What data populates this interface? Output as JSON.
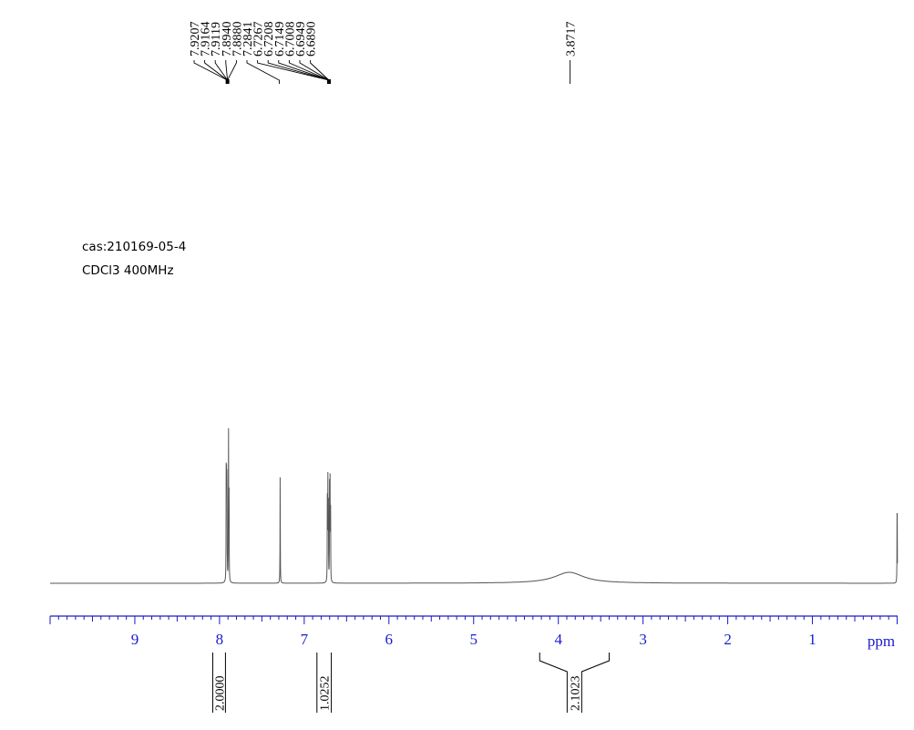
{
  "header": {
    "sample_id": "cas:210169-05-4",
    "solvent_frequency": "CDCl3 400MHz"
  },
  "colors": {
    "spectrum": "#555555",
    "axis": "#1a1acc",
    "peak_labels": "#000000"
  },
  "chart_data": {
    "type": "line",
    "title": "",
    "xlabel": "ppm",
    "ylabel": "",
    "x_axis_reversed": true,
    "xlim": [
      10.0,
      0.0
    ],
    "grid": false,
    "x_ticks": [
      9,
      8,
      7,
      6,
      5,
      4,
      3,
      2,
      1
    ],
    "peak_label_groups": [
      {
        "shifts": [
          "7.9207",
          "7.9164",
          "7.9119",
          "7.8940",
          "7.8880"
        ]
      },
      {
        "shifts": [
          "7.2841"
        ]
      },
      {
        "shifts": [
          "6.7267",
          "6.7208",
          "6.7149",
          "6.7008",
          "6.6949",
          "6.6890"
        ]
      },
      {
        "shifts": [
          "3.8717"
        ]
      }
    ],
    "peaks": [
      {
        "ppm": 7.9207,
        "height": 0.78
      },
      {
        "ppm": 7.9164,
        "height": 0.62
      },
      {
        "ppm": 7.9119,
        "height": 0.72
      },
      {
        "ppm": 7.894,
        "height": 0.94
      },
      {
        "ppm": 7.888,
        "height": 0.7
      },
      {
        "ppm": 7.2841,
        "height": 0.68
      },
      {
        "ppm": 6.7267,
        "height": 0.55
      },
      {
        "ppm": 6.7208,
        "height": 0.58
      },
      {
        "ppm": 6.7149,
        "height": 0.5
      },
      {
        "ppm": 6.7008,
        "height": 0.66
      },
      {
        "ppm": 6.6949,
        "height": 0.57
      },
      {
        "ppm": 6.689,
        "height": 0.45
      },
      {
        "ppm": 0.0,
        "height": 0.6
      }
    ],
    "broad_peaks": [
      {
        "ppm": 3.8717,
        "height": 0.065,
        "width_ppm": 0.42
      }
    ],
    "integrals": [
      {
        "from_ppm": 8.08,
        "to_ppm": 7.93,
        "value": "2.0000"
      },
      {
        "from_ppm": 6.85,
        "to_ppm": 6.68,
        "value": "1.0252"
      },
      {
        "from_ppm": 4.22,
        "to_ppm": 3.4,
        "value": "2.1023"
      }
    ]
  }
}
